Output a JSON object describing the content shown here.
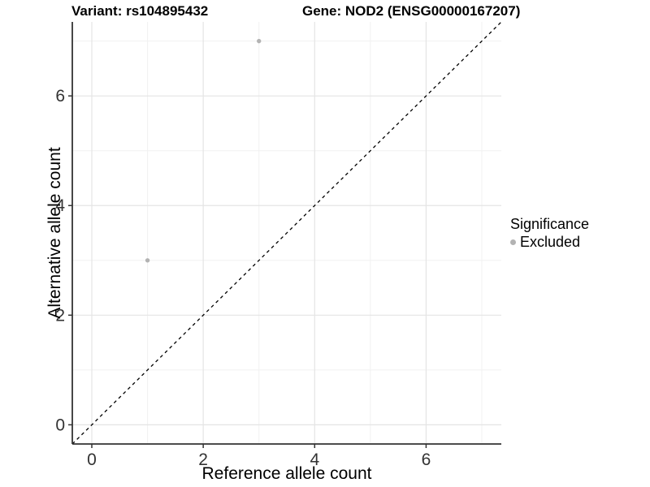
{
  "header": {
    "variant_title": "Variant: rs104895432",
    "gene_title": "Gene: NOD2 (ENSG00000167207)"
  },
  "chart_data": {
    "type": "scatter",
    "xlabel": "Reference allele count",
    "ylabel": "Alternative allele count",
    "xlim": [
      -0.35,
      7.35
    ],
    "ylim": [
      -0.35,
      7.35
    ],
    "x_major_ticks": [
      0,
      2,
      4,
      6
    ],
    "y_major_ticks": [
      0,
      2,
      4,
      6
    ],
    "x_minor_gridlines": [
      1,
      3,
      5,
      7
    ],
    "y_minor_gridlines": [
      1,
      3,
      5,
      7
    ],
    "grid": "major+minor",
    "identity_line": {
      "style": "dashed",
      "color": "#000000",
      "from": -0.35,
      "to": 7.35
    },
    "series": [
      {
        "name": "Excluded",
        "color": "#b3b3b3",
        "points": [
          {
            "x": 3,
            "y": 7
          },
          {
            "x": 1,
            "y": 3
          }
        ]
      }
    ],
    "legend": {
      "title": "Significance",
      "position": "right",
      "entries": [
        {
          "label": "Excluded",
          "color": "#b3b3b3"
        }
      ]
    },
    "colors": {
      "major_grid": "#e4e4e4",
      "minor_grid": "#f1f1f1",
      "axis_line": "#333333",
      "tick_mark": "#333333",
      "tick_text": "#333333",
      "point": "#b3b3b3",
      "background": "#ffffff"
    }
  }
}
